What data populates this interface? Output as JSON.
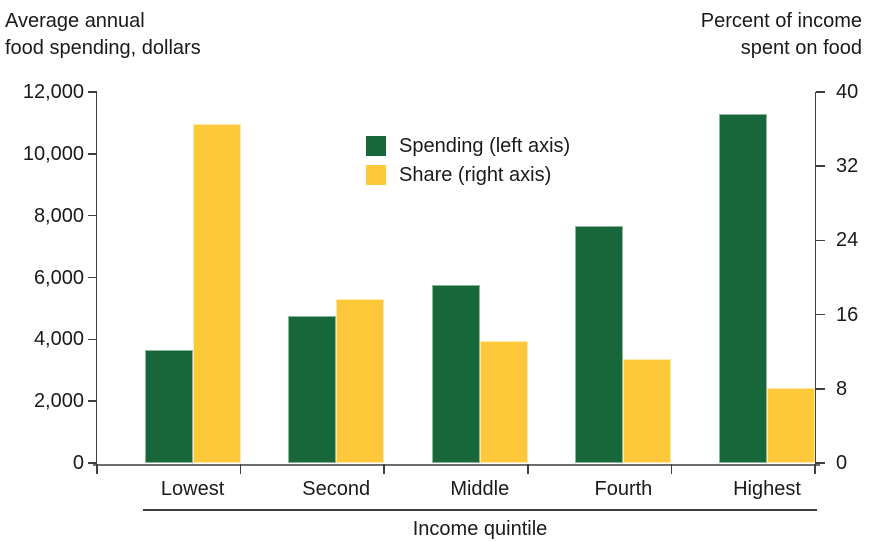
{
  "chart_data": {
    "type": "bar",
    "title": "",
    "categories": [
      "Lowest",
      "Second",
      "Middle",
      "Fourth",
      "Highest"
    ],
    "series": [
      {
        "name": "Spending (left axis)",
        "axis": "left",
        "color": "#17673b",
        "edge_color": "#8db79c",
        "values": [
          3655,
          4740,
          5750,
          7665,
          11275
        ]
      },
      {
        "name": "Share (right axis)",
        "axis": "right",
        "color": "#fdc93a",
        "edge_color": "#fee9a8",
        "values": [
          36.6,
          17.7,
          13.1,
          11.2,
          8.1
        ]
      }
    ],
    "left_axis": {
      "title_lines": [
        "Average annual",
        "food spending, dollars"
      ],
      "tick_labels": [
        "12,000",
        "10,000",
        "8,000",
        "6,000",
        "4,000",
        "2,000",
        "0"
      ],
      "min": 0,
      "max": 12000
    },
    "right_axis": {
      "title_lines": [
        "Percent of income",
        "spent on food"
      ],
      "tick_labels": [
        "40",
        "32",
        "24",
        "16",
        "8",
        "0"
      ],
      "min": 0,
      "max": 40
    },
    "xlabel": "Income quintile",
    "legend_position": "top-center",
    "grid": false
  },
  "colors": {
    "text": "#1a1a1a",
    "axis": "#3f3f3f",
    "baseline": "#6e6e6e",
    "background": "#ffffff"
  }
}
